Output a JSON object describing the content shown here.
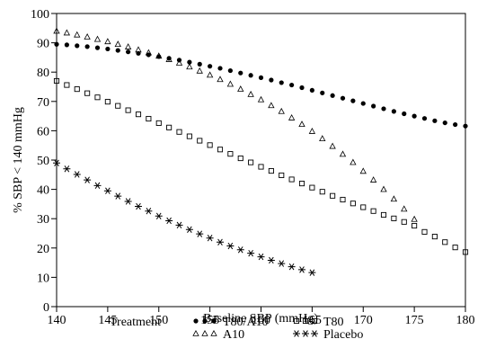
{
  "chart_data": {
    "type": "scatter",
    "title": "",
    "xlabel": "Baseline SBP (mmHg)",
    "ylabel": "% SBP < 140 mmHg",
    "xlim": [
      140,
      180
    ],
    "ylim": [
      0,
      100
    ],
    "xticks": [
      140,
      145,
      150,
      155,
      160,
      165,
      170,
      175,
      180
    ],
    "yticks": [
      0,
      10,
      20,
      30,
      40,
      50,
      60,
      70,
      80,
      90,
      100
    ],
    "grid": false,
    "legend_title": "Treatment",
    "legend_position": "bottom",
    "series": [
      {
        "name": "T80/A10",
        "marker": "dot",
        "x": [
          140,
          141,
          142,
          143,
          144,
          145,
          146,
          147,
          148,
          149,
          150,
          151,
          152,
          153,
          154,
          155,
          156,
          157,
          158,
          159,
          160,
          161,
          162,
          163,
          164,
          165,
          166,
          167,
          168,
          169,
          170,
          171,
          172,
          173,
          174,
          175,
          176,
          177,
          178,
          179,
          180
        ],
        "y": [
          89.5,
          89.3,
          89.0,
          88.7,
          88.3,
          87.9,
          87.4,
          86.9,
          86.4,
          85.9,
          85.3,
          84.7,
          84.1,
          83.4,
          82.7,
          82.0,
          81.3,
          80.5,
          79.7,
          78.9,
          78.1,
          77.3,
          76.4,
          75.6,
          74.7,
          73.8,
          72.9,
          72.0,
          71.1,
          70.2,
          69.3,
          68.4,
          67.5,
          66.6,
          65.8,
          65.0,
          64.2,
          63.4,
          62.7,
          62.1,
          61.6
        ]
      },
      {
        "name": "T80",
        "marker": "square",
        "x": [
          140,
          141,
          142,
          143,
          144,
          145,
          146,
          147,
          148,
          149,
          150,
          151,
          152,
          153,
          154,
          155,
          156,
          157,
          158,
          159,
          160,
          161,
          162,
          163,
          164,
          165,
          166,
          167,
          168,
          169,
          170,
          171,
          172,
          173,
          174,
          175,
          176,
          177,
          178,
          179,
          180
        ],
        "y": [
          77.0,
          75.6,
          74.2,
          72.8,
          71.4,
          69.9,
          68.5,
          67.0,
          65.6,
          64.1,
          62.6,
          61.1,
          59.6,
          58.1,
          56.6,
          55.1,
          53.6,
          52.1,
          50.6,
          49.2,
          47.7,
          46.3,
          44.8,
          43.4,
          42.0,
          40.6,
          39.2,
          37.8,
          36.5,
          35.2,
          33.9,
          32.6,
          31.3,
          30.1,
          28.9,
          27.6,
          25.5,
          23.9,
          22.0,
          20.2,
          18.6
        ]
      },
      {
        "name": "A10",
        "marker": "triangle",
        "x": [
          140,
          141,
          142,
          143,
          144,
          145,
          146,
          147,
          148,
          149,
          150,
          151,
          152,
          153,
          154,
          155,
          156,
          157,
          158,
          159,
          160,
          161,
          162,
          163,
          164,
          165,
          166,
          167,
          168,
          169,
          170,
          171,
          172,
          173,
          174,
          175
        ],
        "y": [
          94.0,
          93.4,
          92.7,
          92.0,
          91.2,
          90.4,
          89.5,
          88.6,
          87.6,
          86.6,
          85.5,
          84.3,
          83.1,
          81.8,
          80.4,
          79.0,
          77.5,
          75.9,
          74.2,
          72.4,
          70.6,
          68.6,
          66.6,
          64.4,
          62.2,
          59.8,
          57.3,
          54.7,
          52.0,
          49.2,
          46.2,
          43.2,
          40.0,
          36.7,
          33.3,
          29.8
        ]
      },
      {
        "name": "Placebo",
        "marker": "star",
        "x": [
          140,
          141,
          142,
          143,
          144,
          145,
          146,
          147,
          148,
          149,
          150,
          151,
          152,
          153,
          154,
          155,
          156,
          157,
          158,
          159,
          160,
          161,
          162,
          163,
          164,
          165
        ],
        "y": [
          49.0,
          47.0,
          45.1,
          43.2,
          41.3,
          39.5,
          37.7,
          35.9,
          34.2,
          32.6,
          30.9,
          29.3,
          27.8,
          26.3,
          24.8,
          23.4,
          22.0,
          20.7,
          19.4,
          18.2,
          17.0,
          15.8,
          14.7,
          13.6,
          12.6,
          11.6
        ]
      }
    ]
  }
}
